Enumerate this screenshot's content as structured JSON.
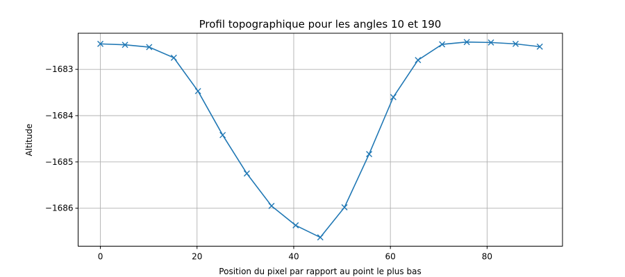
{
  "chart_data": {
    "type": "line",
    "title": "Profil topographique pour les angles 10 et 190",
    "xlabel": "Position du pixel par rapport au point le plus bas",
    "ylabel": "Altitude",
    "xlim": [
      -4.6,
      95.6
    ],
    "ylim": [
      -1686.82,
      -1682.22
    ],
    "xticks": [
      0,
      20,
      40,
      60,
      80
    ],
    "yticks": [
      -1686,
      -1685,
      -1684,
      -1683
    ],
    "grid": true,
    "series": [
      {
        "color": "#1f77b4",
        "marker": "x",
        "x": [
          0,
          5.1,
          10.1,
          15.2,
          20.2,
          25.3,
          30.3,
          35.4,
          40.4,
          45.5,
          50.5,
          55.6,
          60.6,
          65.7,
          70.7,
          75.8,
          80.8,
          85.9,
          90.9
        ],
        "y": [
          -1682.45,
          -1682.47,
          -1682.52,
          -1682.75,
          -1683.47,
          -1684.42,
          -1685.25,
          -1685.95,
          -1686.37,
          -1686.63,
          -1685.98,
          -1684.83,
          -1683.6,
          -1682.8,
          -1682.46,
          -1682.41,
          -1682.42,
          -1682.45,
          -1682.51
        ]
      }
    ]
  }
}
